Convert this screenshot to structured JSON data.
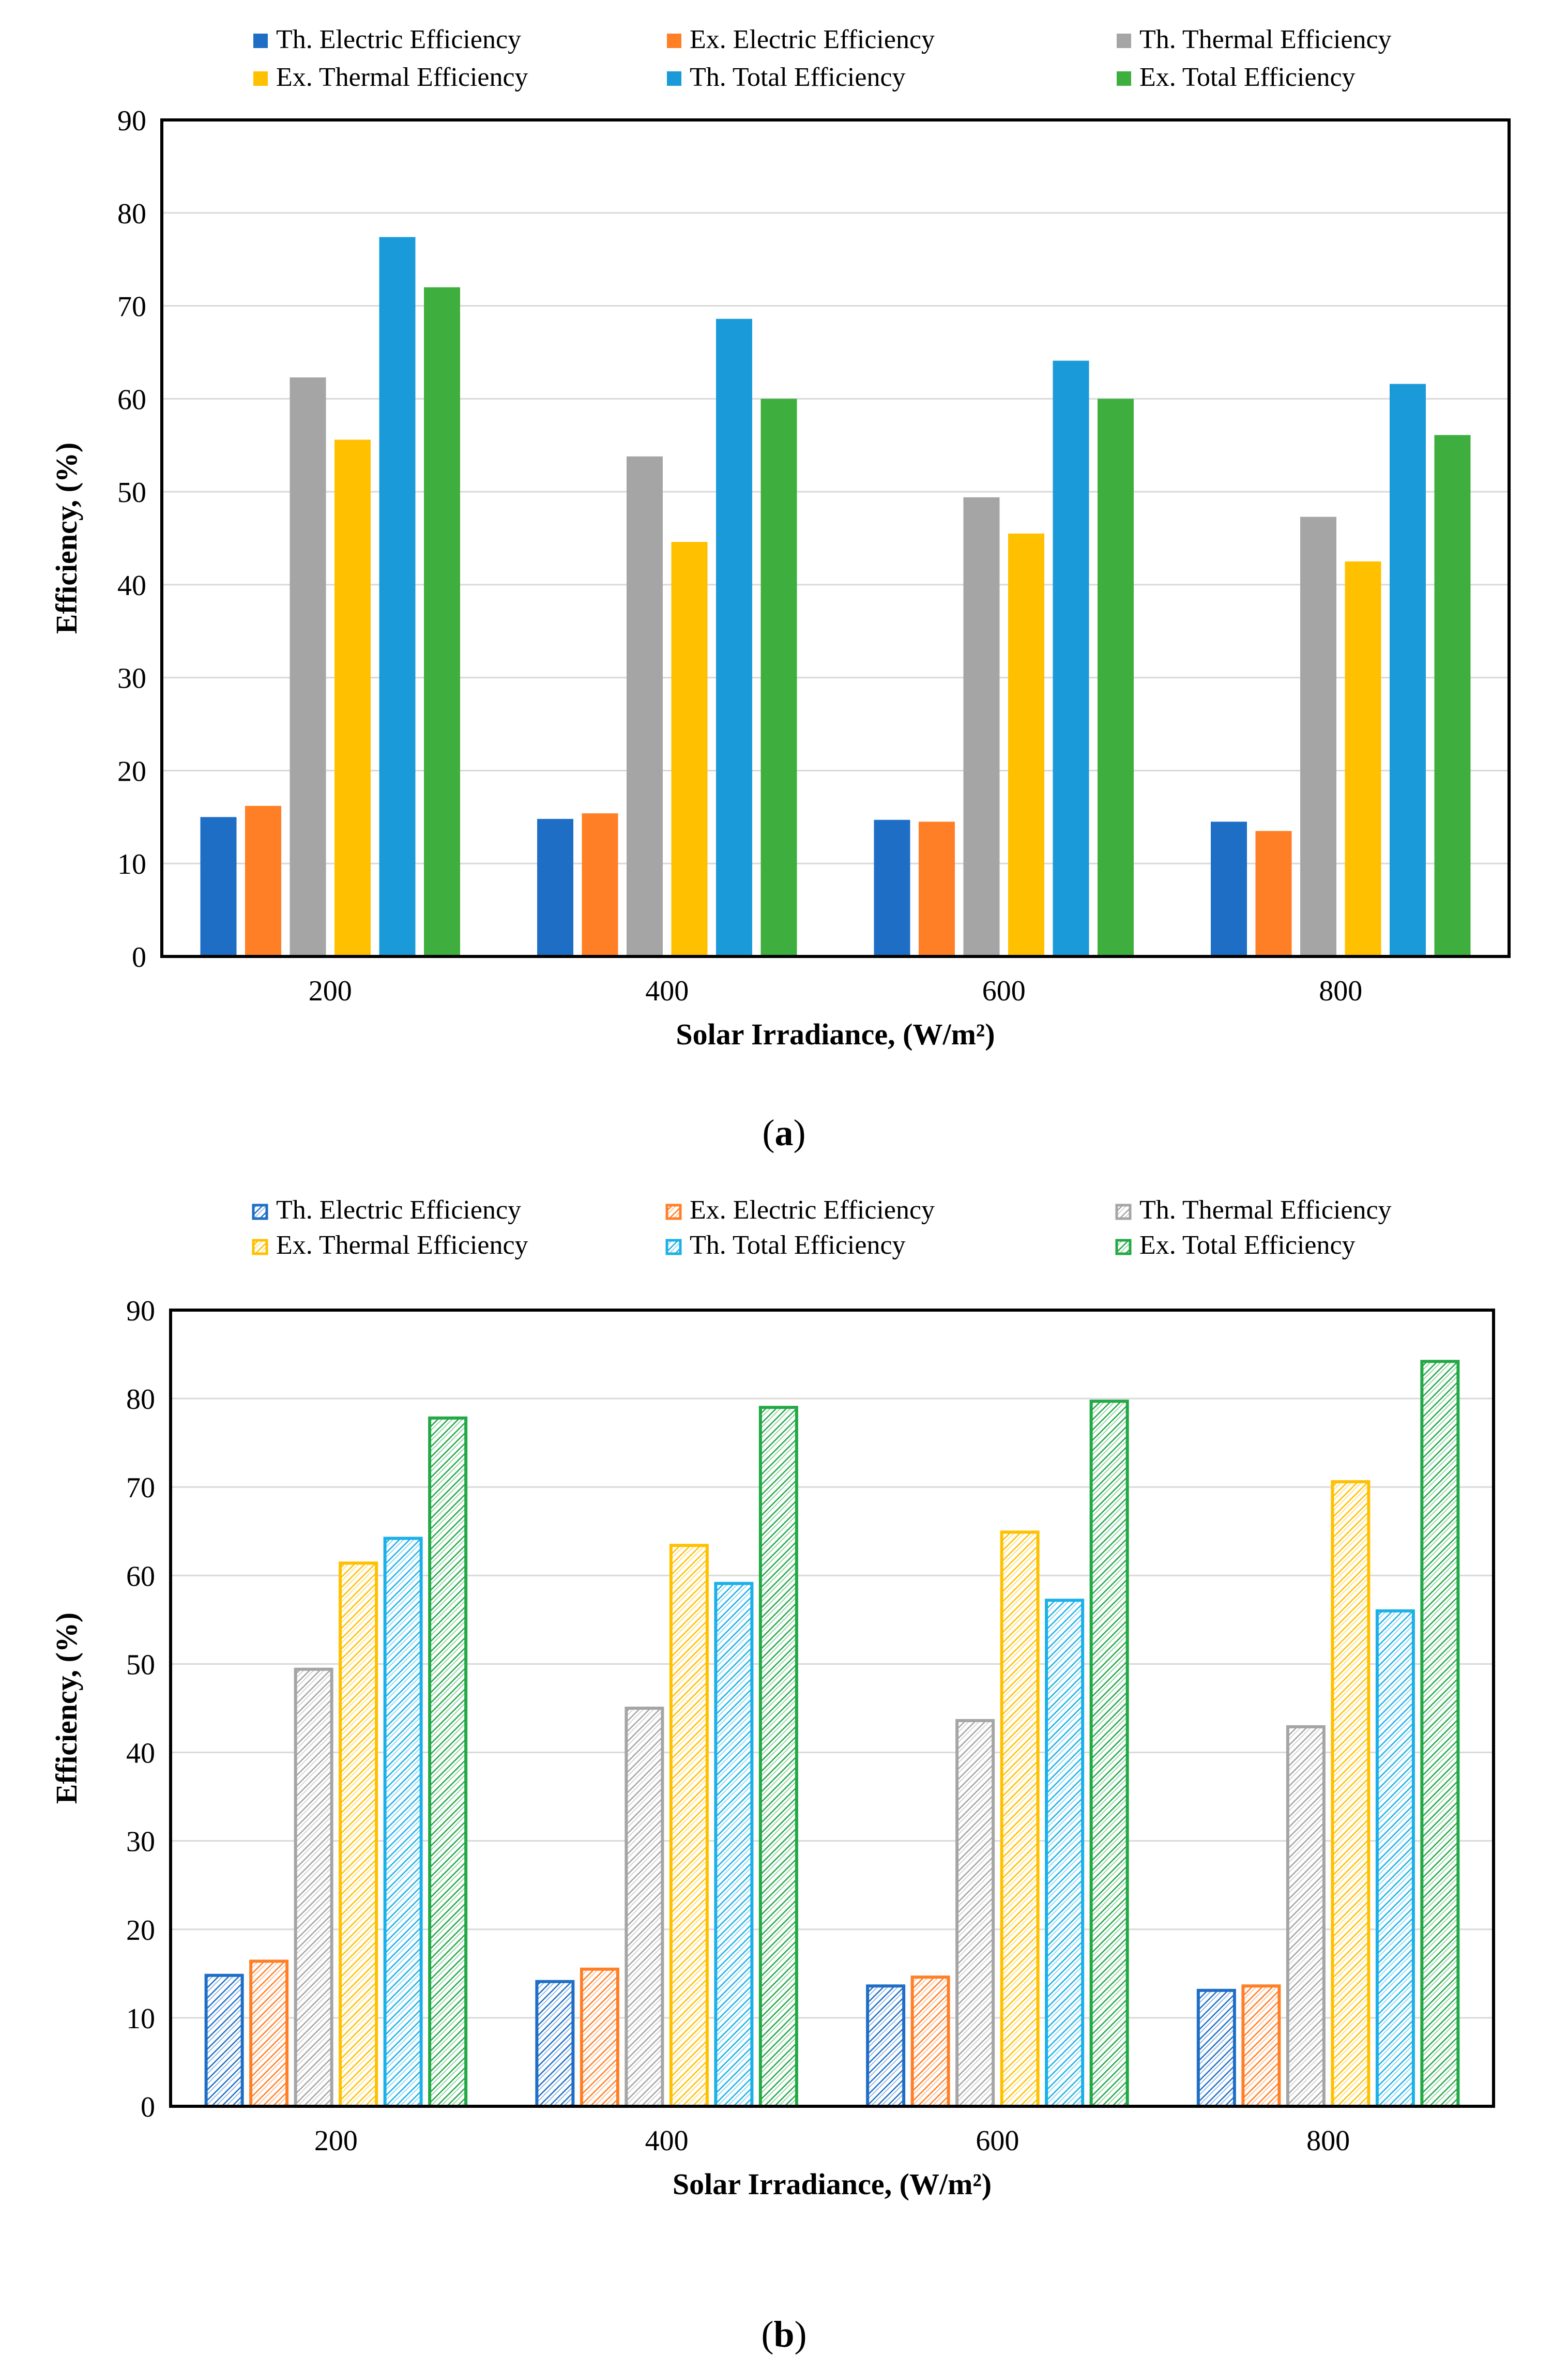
{
  "chart_data": [
    {
      "id": "a",
      "type": "bar",
      "caption": "a",
      "xlabel": "Solar Irradiance, (W/m²)",
      "ylabel": "Efficiency, (%)",
      "ylim": [
        0,
        90
      ],
      "yticks": [
        0,
        10,
        20,
        30,
        40,
        50,
        60,
        70,
        80,
        90
      ],
      "grid": true,
      "legend_position": "top",
      "pattern": "solid",
      "categories": [
        "200",
        "400",
        "600",
        "800"
      ],
      "series": [
        {
          "name": "Th. Electric Efficiency",
          "color": "#1F6EC6",
          "values": [
            15,
            14.8,
            14.7,
            14.5
          ]
        },
        {
          "name": "Ex. Electric Efficiency",
          "color": "#FF7F27",
          "values": [
            16.2,
            15.4,
            14.5,
            13.5
          ]
        },
        {
          "name": "Th. Thermal Efficiency",
          "color": "#A5A5A5",
          "values": [
            62.3,
            53.8,
            49.4,
            47.3
          ]
        },
        {
          "name": "Ex. Thermal Efficiency",
          "color": "#FFC000",
          "values": [
            55.6,
            44.6,
            45.5,
            42.5
          ]
        },
        {
          "name": "Th. Total Efficiency",
          "color": "#1B9AD9",
          "values": [
            77.4,
            68.6,
            64.1,
            61.6
          ]
        },
        {
          "name": "Ex. Total Efficiency",
          "color": "#3EAF3E",
          "values": [
            72,
            60,
            60,
            56.1
          ]
        }
      ]
    },
    {
      "id": "b",
      "type": "bar",
      "caption": "b",
      "xlabel": "Solar Irradiance, (W/m²)",
      "ylabel": "Efficiency, (%)",
      "ylim": [
        0,
        90
      ],
      "yticks": [
        0,
        10,
        20,
        30,
        40,
        50,
        60,
        70,
        80,
        90
      ],
      "grid": true,
      "legend_position": "top",
      "pattern": "hatched",
      "categories": [
        "200",
        "400",
        "600",
        "800"
      ],
      "series": [
        {
          "name": "Th. Electric Efficiency",
          "color": "#1F6EC6",
          "values": [
            14.8,
            14.1,
            13.6,
            13.1
          ]
        },
        {
          "name": "Ex. Electric Efficiency",
          "color": "#FF7F27",
          "values": [
            16.4,
            15.5,
            14.6,
            13.6
          ]
        },
        {
          "name": "Th. Thermal Efficiency",
          "color": "#A5A5A5",
          "values": [
            49.4,
            45,
            43.6,
            42.9
          ]
        },
        {
          "name": "Ex. Thermal Efficiency",
          "color": "#FFC000",
          "values": [
            61.4,
            63.4,
            64.9,
            70.6
          ]
        },
        {
          "name": "Th. Total Efficiency",
          "color": "#1BB0E8",
          "values": [
            64.2,
            59.1,
            57.2,
            56
          ]
        },
        {
          "name": "Ex. Total Efficiency",
          "color": "#22A845",
          "values": [
            77.8,
            79,
            79.7,
            84.2
          ]
        }
      ]
    }
  ]
}
